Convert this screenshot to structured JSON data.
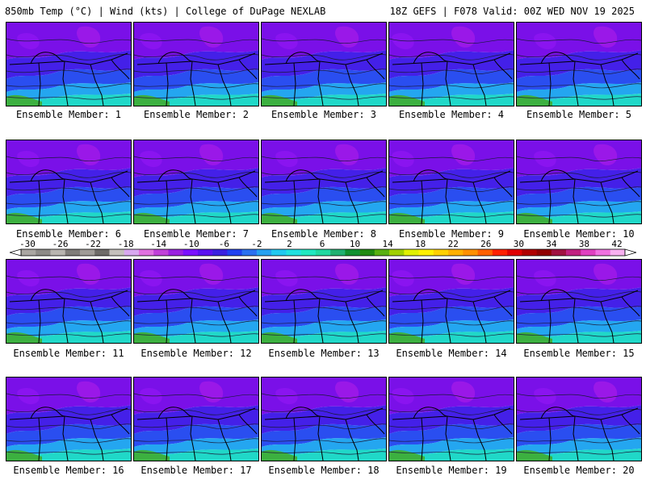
{
  "header": {
    "left": "850mb Temp (°C) | Wind (kts) | College of DuPage NEXLAB",
    "right": "18Z GEFS | F078 Valid: 00Z WED NOV 19 2025"
  },
  "colorbar": {
    "labels": [
      "-30",
      "-26",
      "-22",
      "-18",
      "-14",
      "-10",
      "-6",
      "-2",
      "2",
      "6",
      "10",
      "14",
      "18",
      "22",
      "26",
      "30",
      "34",
      "38",
      "42"
    ],
    "colors": [
      "#aaa6a2",
      "#8d8a87",
      "#b8b4b0",
      "#7f7c79",
      "#9f9b97",
      "#6e6b68",
      "#c4c0bc",
      "#d8a8f0",
      "#e070e0",
      "#c040d8",
      "#9a20e0",
      "#7a10ff",
      "#5a10f0",
      "#3a20e0",
      "#2040f0",
      "#2a70f0",
      "#25a0f0",
      "#20c8f0",
      "#20e0e0",
      "#20e8c0",
      "#20d8a0",
      "#20b070",
      "#109030",
      "#208a10",
      "#58b010",
      "#a0d000",
      "#e0f000",
      "#fff000",
      "#ffd000",
      "#ffb000",
      "#ff9000",
      "#ff6000",
      "#ff2000",
      "#e00000",
      "#b00000",
      "#900000",
      "#a01040",
      "#c02080",
      "#e040c0",
      "#f070e0",
      "#f8b0f0"
    ]
  },
  "members": [
    {
      "label": "Ensemble Member: 1"
    },
    {
      "label": "Ensemble Member: 2"
    },
    {
      "label": "Ensemble Member: 3"
    },
    {
      "label": "Ensemble Member: 4"
    },
    {
      "label": "Ensemble Member: 5"
    },
    {
      "label": "Ensemble Member: 6"
    },
    {
      "label": "Ensemble Member: 7"
    },
    {
      "label": "Ensemble Member: 8"
    },
    {
      "label": "Ensemble Member: 9"
    },
    {
      "label": "Ensemble Member: 10"
    },
    {
      "label": "Ensemble Member: 11"
    },
    {
      "label": "Ensemble Member: 12"
    },
    {
      "label": "Ensemble Member: 13"
    },
    {
      "label": "Ensemble Member: 14"
    },
    {
      "label": "Ensemble Member: 15"
    },
    {
      "label": "Ensemble Member: 16"
    },
    {
      "label": "Ensemble Member: 17"
    },
    {
      "label": "Ensemble Member: 18"
    },
    {
      "label": "Ensemble Member: 19"
    },
    {
      "label": "Ensemble Member: 20"
    }
  ]
}
